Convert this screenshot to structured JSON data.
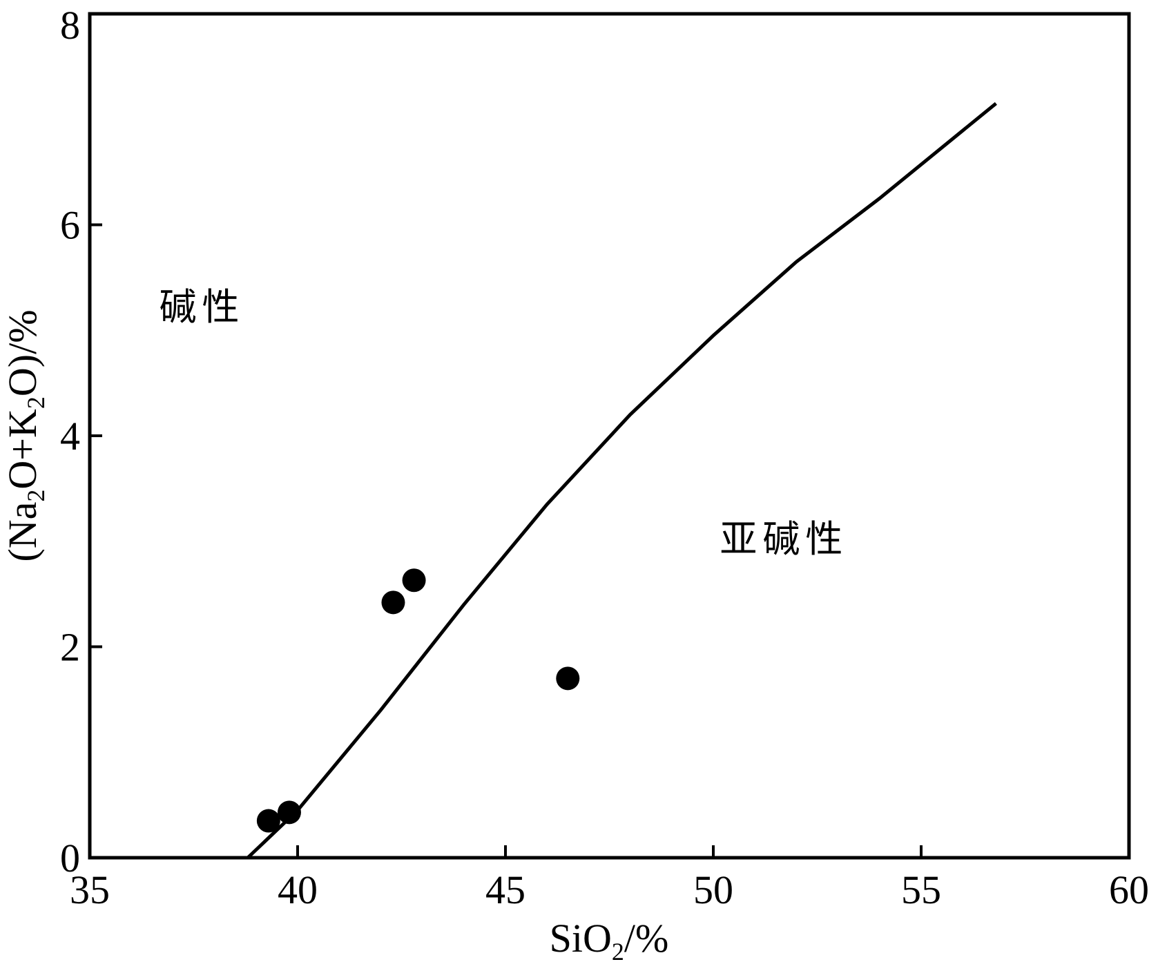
{
  "chart_data": {
    "type": "scatter",
    "title": "",
    "xlabel": "SiO",
    "xlabel_sub": "2",
    "xlabel_suffix": "/%",
    "ylabel_parts": [
      "(Na",
      "2",
      "O+K",
      "2",
      "O)/%"
    ],
    "xlim": [
      35,
      60
    ],
    "ylim": [
      0,
      8
    ],
    "x_ticks": [
      35,
      40,
      45,
      50,
      55,
      60
    ],
    "y_ticks": [
      0,
      2,
      4,
      6,
      8
    ],
    "grid": false,
    "series": [
      {
        "points": [
          {
            "x": 39.3,
            "y": 0.35
          },
          {
            "x": 39.8,
            "y": 0.43
          },
          {
            "x": 42.3,
            "y": 2.42
          },
          {
            "x": 42.8,
            "y": 2.63
          },
          {
            "x": 46.5,
            "y": 1.7
          }
        ]
      }
    ],
    "boundary_line": [
      {
        "x": 38.8,
        "y": 0.0
      },
      {
        "x": 40.0,
        "y": 0.45
      },
      {
        "x": 42.0,
        "y": 1.4
      },
      {
        "x": 44.0,
        "y": 2.4
      },
      {
        "x": 46.0,
        "y": 3.35
      },
      {
        "x": 48.0,
        "y": 4.2
      },
      {
        "x": 50.0,
        "y": 4.95
      },
      {
        "x": 52.0,
        "y": 5.65
      },
      {
        "x": 54.0,
        "y": 6.25
      },
      {
        "x": 56.8,
        "y": 7.15
      }
    ],
    "annotations": [
      {
        "text": "碱性",
        "x": 37.7,
        "y": 5.1
      },
      {
        "text": "亚碱性",
        "x": 51.7,
        "y": 2.9
      }
    ]
  }
}
